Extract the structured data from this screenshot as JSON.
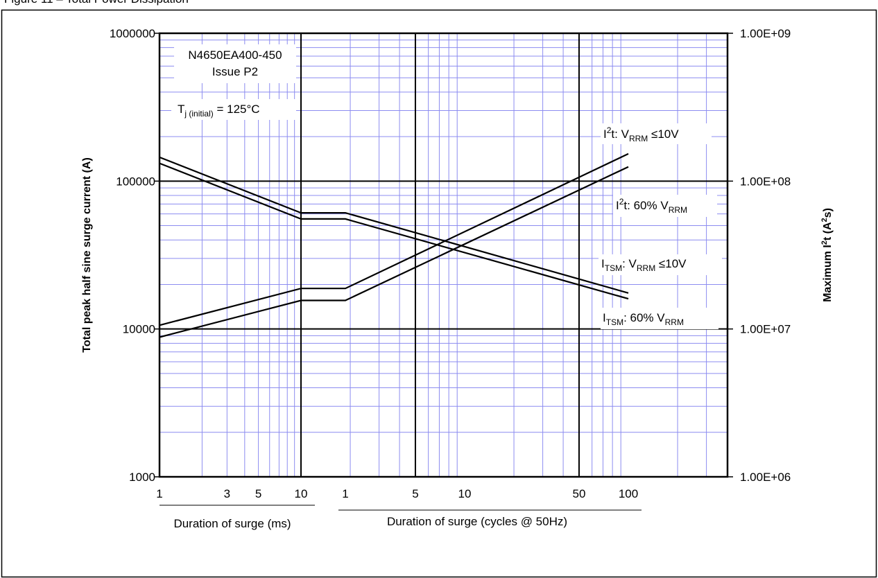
{
  "figure_title": "Figure 11 – Total Power Dissipation",
  "chart_data": {
    "type": "line",
    "left_axis": {
      "label": "Total peak half sine surge current (A)",
      "scale": "log",
      "range": [
        1000,
        1000000
      ],
      "tick_labels": [
        "1000000",
        "100000",
        "10000",
        "1000"
      ]
    },
    "right_axis": {
      "label_text": "Maximum I",
      "label_sup": "2",
      "label_text2": "t (A",
      "label_sup2": "2",
      "label_text3": "s)",
      "scale": "log",
      "range": [
        1000000,
        1000000000
      ],
      "tick_labels": [
        "1.00E+09",
        "1.00E+08",
        "1.00E+07",
        "1.00E+06"
      ]
    },
    "x_ms": {
      "label": "Duration of surge (ms)",
      "range": [
        1,
        10
      ],
      "tick_values": [
        1,
        3,
        5,
        10
      ],
      "tick_labels": [
        "1",
        "3",
        "5",
        "10"
      ]
    },
    "x_cycles": {
      "label": "Duration of surge (cycles @ 50Hz)",
      "range": [
        1,
        100
      ],
      "tick_values": [
        1,
        5,
        10,
        50,
        100
      ],
      "tick_labels": [
        "1",
        "5",
        "10",
        "50",
        "100"
      ]
    },
    "annotations": {
      "part_number": "N4650EA400-450",
      "issue": "Issue P2",
      "tj_main": "T",
      "tj_sub": "j (initial)",
      "tj_value": " = 125°C"
    },
    "grid": true,
    "grid_color": "#8c8cf0",
    "series": [
      {
        "axis": "left",
        "label_main": "I",
        "label_sub": "TSM",
        "label_rest": ": V",
        "label_sub2": "RRM",
        "label_tail": " ≤10V",
        "points_ms": [
          [
            1,
            145000
          ],
          [
            10,
            61000
          ]
        ],
        "points_cycles": [
          [
            1,
            61000
          ],
          [
            100,
            17500
          ]
        ]
      },
      {
        "axis": "left",
        "label_main": "I",
        "label_sub": "TSM",
        "label_rest": ": 60% V",
        "label_sub2": "RRM",
        "label_tail": "",
        "points_ms": [
          [
            1,
            132000
          ],
          [
            10,
            55500
          ]
        ],
        "points_cycles": [
          [
            1,
            55500
          ],
          [
            100,
            16000
          ]
        ]
      },
      {
        "axis": "right",
        "label_main": "I",
        "label_sup": "2",
        "label_rest": "t: V",
        "label_sub2": "RRM",
        "label_tail": " ≤10V",
        "points_ms": [
          [
            1,
            10600000
          ],
          [
            10,
            18800000
          ]
        ],
        "points_cycles": [
          [
            1,
            18800000
          ],
          [
            100,
            153000000
          ]
        ]
      },
      {
        "axis": "right",
        "label_main": "I",
        "label_sup": "2",
        "label_rest": "t: 60% V",
        "label_sub2": "RRM",
        "label_tail": "",
        "points_ms": [
          [
            1,
            8800000
          ],
          [
            10,
            15600000
          ]
        ],
        "points_cycles": [
          [
            1,
            15600000
          ],
          [
            100,
            125000000
          ]
        ]
      }
    ]
  }
}
